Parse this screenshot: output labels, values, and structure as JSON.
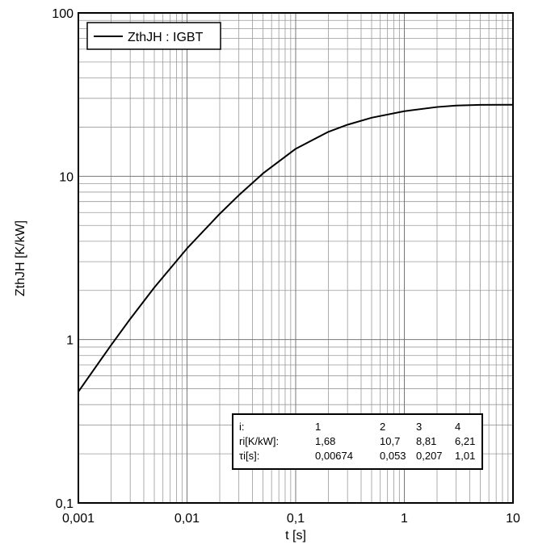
{
  "chart_data": {
    "type": "line",
    "xlabel": "t [s]",
    "ylabel": "ZthJH [K/kW]",
    "x": [
      0.001,
      0.002,
      0.003,
      0.005,
      0.01,
      0.02,
      0.03,
      0.05,
      0.1,
      0.2,
      0.3,
      0.5,
      1,
      2,
      3,
      5,
      10
    ],
    "series": [
      {
        "name": "ZthJH : IGBT",
        "color": "#000000",
        "values": [
          0.48,
          0.925,
          1.338,
          2.084,
          3.616,
          5.89,
          7.656,
          10.405,
          14.72,
          18.71,
          20.68,
          22.83,
          25.02,
          26.54,
          27.09,
          27.36,
          27.4
        ]
      }
    ],
    "xscale": "log",
    "yscale": "log",
    "xlim": [
      0.001,
      10
    ],
    "ylim": [
      0.1,
      100
    ],
    "xticks": [
      {
        "value": 0.001,
        "label": "0,001"
      },
      {
        "value": 0.01,
        "label": "0,01"
      },
      {
        "value": 0.1,
        "label": "0,1"
      },
      1,
      10
    ],
    "yticks": [
      {
        "value": 0.1,
        "label": "0,1"
      },
      1,
      10,
      100
    ],
    "grid": true,
    "minor_grid": true,
    "legend": "upper left",
    "table": {
      "rows": [
        [
          "i:",
          "1",
          "2",
          "3",
          "4"
        ],
        [
          "ri[K/kW]:",
          "1,68",
          "10,7",
          "8,81",
          "6,21"
        ],
        [
          "τi[s]:",
          "0,00674",
          "0,053",
          "0,207",
          "1,01"
        ]
      ]
    }
  }
}
